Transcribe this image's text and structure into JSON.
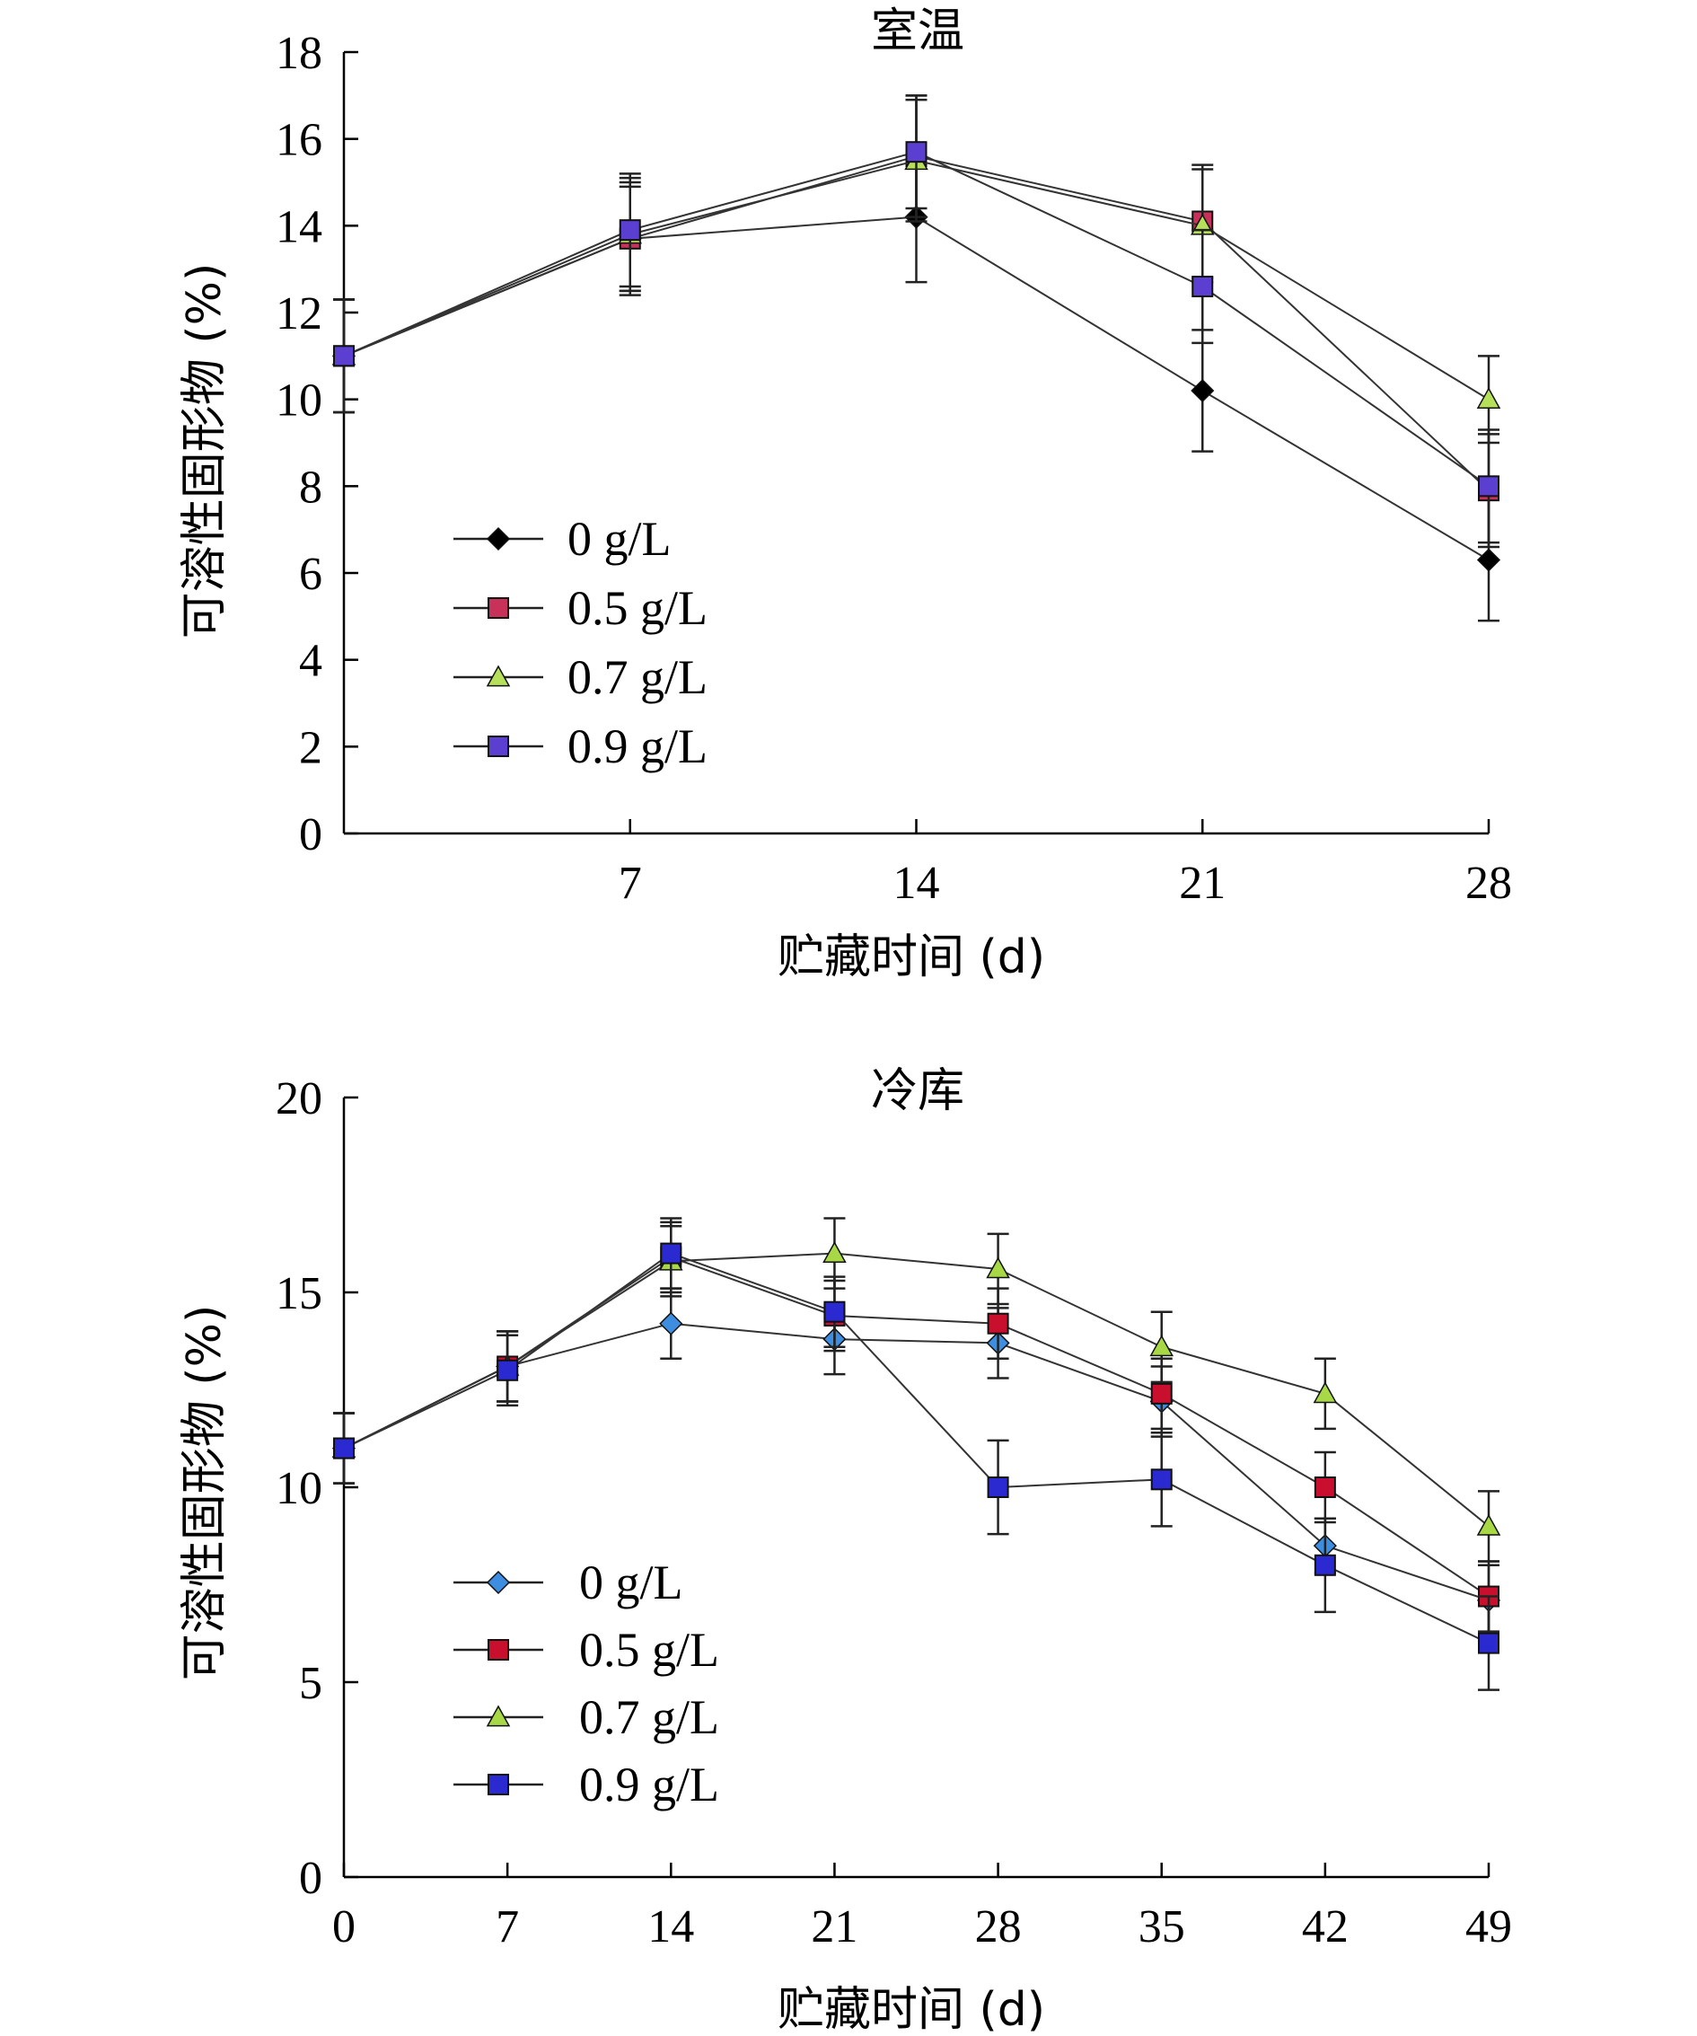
{
  "chart_data": [
    {
      "type": "line",
      "title": "室温",
      "xlabel": "贮藏时间 (d)",
      "ylabel": "可溶性固形物 (%)",
      "x": [
        0,
        7,
        14,
        21,
        28
      ],
      "x_tick_labels": [
        "7",
        "14",
        "21",
        "28"
      ],
      "ylim": [
        0,
        18
      ],
      "y_ticks": [
        0,
        2,
        4,
        6,
        8,
        10,
        12,
        14,
        16,
        18
      ],
      "legend_position": "lower-left",
      "series": [
        {
          "name": "0 g/L",
          "values": [
            11.0,
            13.7,
            14.2,
            10.2,
            6.3
          ],
          "errors": [
            1.3,
            1.2,
            1.5,
            1.4,
            1.4
          ],
          "color": "#000000",
          "marker": "diamond"
        },
        {
          "name": "0.5 g/L",
          "values": [
            11.0,
            13.7,
            15.6,
            14.1,
            7.9
          ],
          "errors": [
            1.3,
            1.3,
            1.4,
            1.3,
            1.3
          ],
          "color": "#c8325a",
          "marker": "square"
        },
        {
          "name": "0.7 g/L",
          "values": [
            11.0,
            13.8,
            15.5,
            14.0,
            10.0
          ],
          "errors": [
            1.3,
            1.3,
            1.4,
            1.3,
            1.0
          ],
          "color": "#b7e05a",
          "marker": "triangle"
        },
        {
          "name": "0.9 g/L",
          "values": [
            11.0,
            13.9,
            15.7,
            12.6,
            8.0
          ],
          "errors": [
            1.3,
            1.3,
            1.3,
            1.3,
            1.3
          ],
          "color": "#5a3fd0",
          "marker": "square"
        }
      ]
    },
    {
      "type": "line",
      "title": "冷库",
      "xlabel": "贮藏时间 (d)",
      "ylabel": "可溶性固形物 (%)",
      "x": [
        0,
        7,
        14,
        21,
        28,
        35,
        42,
        49
      ],
      "x_tick_labels": [
        "0",
        "7",
        "14",
        "21",
        "28",
        "35",
        "42",
        "49"
      ],
      "ylim": [
        0,
        20
      ],
      "y_ticks": [
        0,
        5,
        10,
        15,
        20
      ],
      "legend_position": "lower-left",
      "series": [
        {
          "name": "0 g/L",
          "values": [
            11.0,
            13.1,
            14.2,
            13.8,
            13.7,
            12.2,
            8.5,
            7.1
          ],
          "errors": [
            0.9,
            0.9,
            0.9,
            0.9,
            0.9,
            0.9,
            0.7,
            0.9
          ],
          "color": "#3d8de0",
          "marker": "diamond"
        },
        {
          "name": "0.5 g/L",
          "values": [
            11.0,
            13.1,
            15.9,
            14.4,
            14.2,
            12.4,
            10.0,
            7.2
          ],
          "errors": [
            0.9,
            0.9,
            0.9,
            0.9,
            0.9,
            0.9,
            0.9,
            0.9
          ],
          "color": "#c8102e",
          "marker": "square"
        },
        {
          "name": "0.7 g/L",
          "values": [
            11.0,
            13.1,
            15.8,
            16.0,
            15.6,
            13.6,
            12.4,
            9.0
          ],
          "errors": [
            0.9,
            0.9,
            0.9,
            0.9,
            0.9,
            0.9,
            0.9,
            0.9
          ],
          "color": "#a8d845",
          "marker": "triangle"
        },
        {
          "name": "0.9 g/L",
          "values": [
            11.0,
            13.0,
            16.0,
            14.5,
            10.0,
            10.2,
            8.0,
            6.0
          ],
          "errors": [
            0.9,
            0.9,
            0.9,
            0.9,
            1.2,
            1.2,
            1.2,
            1.2
          ],
          "color": "#2a2ad0",
          "marker": "square"
        }
      ]
    }
  ]
}
